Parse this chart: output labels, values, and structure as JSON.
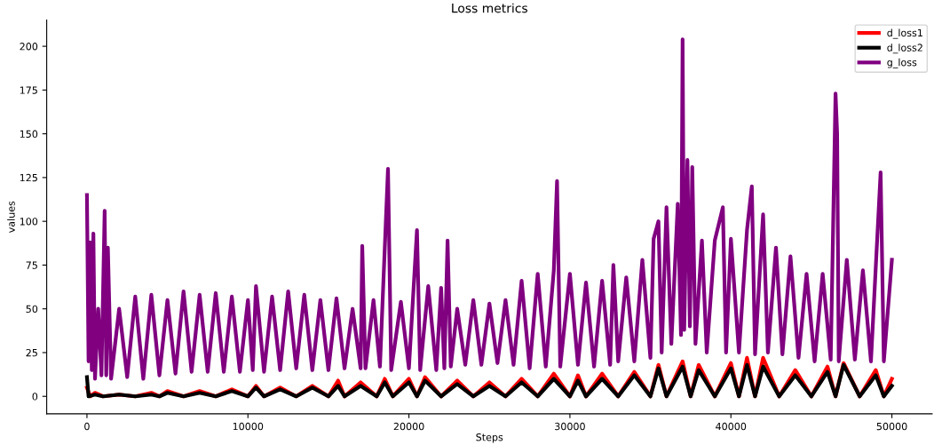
{
  "chart_data": {
    "type": "line",
    "title": "Loss metrics",
    "xlabel": "Steps",
    "ylabel": "values",
    "xlim": [
      -2500,
      52500
    ],
    "ylim": [
      -10,
      215
    ],
    "xticks": [
      0,
      10000,
      20000,
      30000,
      40000,
      50000
    ],
    "yticks": [
      0,
      25,
      50,
      75,
      100,
      125,
      150,
      175,
      200
    ],
    "grid": false,
    "legend": "top right",
    "line_style": "solid",
    "marker": "none",
    "series": [
      {
        "name": "d_loss1",
        "color": "#ff0000",
        "x": [
          0,
          200,
          500,
          1000,
          2000,
          3000,
          4000,
          4500,
          5000,
          6000,
          7000,
          8000,
          9000,
          10000,
          10500,
          11000,
          12000,
          13000,
          14000,
          15000,
          15600,
          16000,
          17000,
          18000,
          18500,
          19000,
          20000,
          20500,
          21000,
          22000,
          23000,
          24000,
          25000,
          26000,
          27000,
          28000,
          29000,
          30000,
          30500,
          31000,
          32000,
          33000,
          34000,
          35000,
          35500,
          36000,
          37000,
          37500,
          38000,
          39000,
          40000,
          40500,
          41000,
          41500,
          42000,
          43000,
          44000,
          45000,
          46000,
          46500,
          47000,
          48000,
          49000,
          49500,
          50000
        ],
        "values": [
          5,
          0,
          2,
          0,
          1,
          0,
          2,
          0,
          3,
          0,
          3,
          0,
          4,
          0,
          6,
          0,
          5,
          0,
          6,
          0,
          9,
          0,
          8,
          0,
          10,
          0,
          10,
          0,
          11,
          0,
          9,
          0,
          8,
          0,
          10,
          0,
          13,
          0,
          12,
          0,
          13,
          0,
          14,
          0,
          18,
          0,
          20,
          0,
          18,
          0,
          19,
          0,
          22,
          0,
          22,
          0,
          15,
          0,
          17,
          0,
          19,
          0,
          15,
          0,
          10
        ]
      },
      {
        "name": "d_loss2",
        "color": "#000000",
        "x": [
          0,
          100,
          500,
          1000,
          2000,
          3000,
          4000,
          4500,
          5000,
          6000,
          7000,
          8000,
          9000,
          10000,
          10500,
          11000,
          12000,
          13000,
          14000,
          15000,
          15600,
          16000,
          17000,
          18000,
          18500,
          19000,
          20000,
          20500,
          21000,
          22000,
          23000,
          24000,
          25000,
          26000,
          27000,
          28000,
          29000,
          30000,
          30500,
          31000,
          32000,
          33000,
          34000,
          35000,
          35500,
          36000,
          37000,
          37500,
          38000,
          39000,
          40000,
          40500,
          41000,
          41500,
          42000,
          43000,
          44000,
          45000,
          46000,
          46500,
          47000,
          48000,
          49000,
          49500,
          50000
        ],
        "values": [
          11,
          0,
          1,
          0,
          1,
          0,
          1,
          0,
          2,
          0,
          2,
          0,
          3,
          0,
          5,
          0,
          4,
          0,
          5,
          0,
          6,
          0,
          6,
          0,
          8,
          0,
          8,
          0,
          9,
          0,
          7,
          0,
          6,
          0,
          8,
          0,
          10,
          0,
          9,
          0,
          10,
          0,
          12,
          0,
          16,
          0,
          17,
          0,
          15,
          0,
          16,
          0,
          18,
          0,
          17,
          0,
          12,
          0,
          14,
          0,
          18,
          0,
          12,
          0,
          6
        ]
      },
      {
        "name": "g_loss",
        "color": "#800080",
        "x": [
          0,
          100,
          200,
          300,
          400,
          500,
          700,
          900,
          1100,
          1200,
          1300,
          1500,
          2000,
          2500,
          3000,
          3500,
          4000,
          4500,
          5000,
          5500,
          6000,
          6500,
          7000,
          7500,
          8000,
          8500,
          9000,
          9500,
          10000,
          10300,
          10500,
          11000,
          11500,
          12000,
          12500,
          13000,
          13500,
          14000,
          14500,
          15000,
          15500,
          16000,
          16500,
          17000,
          17100,
          17300,
          17800,
          18200,
          18700,
          18900,
          19500,
          20000,
          20500,
          20700,
          21200,
          21700,
          22000,
          22200,
          22400,
          22600,
          23000,
          23500,
          24000,
          24500,
          25000,
          25500,
          26000,
          26500,
          27000,
          27500,
          28000,
          28500,
          29000,
          29200,
          29400,
          30000,
          30500,
          31000,
          31500,
          32000,
          32500,
          32700,
          33000,
          33500,
          34000,
          34500,
          35000,
          35200,
          35500,
          35700,
          36000,
          36300,
          36700,
          36900,
          37000,
          37100,
          37300,
          37450,
          37600,
          37800,
          38200,
          38500,
          39000,
          39500,
          39700,
          40000,
          40500,
          41000,
          41300,
          41500,
          42000,
          42300,
          42800,
          43200,
          43700,
          44200,
          44700,
          45200,
          45700,
          46200,
          46500,
          46600,
          46700,
          47200,
          47700,
          48200,
          48700,
          49300,
          49500,
          50000
        ],
        "values": [
          115,
          20,
          88,
          15,
          93,
          10,
          50,
          12,
          106,
          12,
          85,
          10,
          50,
          11,
          57,
          10,
          58,
          12,
          55,
          13,
          60,
          14,
          58,
          14,
          59,
          14,
          57,
          14,
          55,
          15,
          63,
          14,
          57,
          15,
          60,
          16,
          58,
          15,
          55,
          15,
          56,
          16,
          50,
          16,
          86,
          16,
          55,
          17,
          130,
          15,
          54,
          16,
          95,
          15,
          63,
          15,
          62,
          16,
          89,
          17,
          50,
          18,
          55,
          18,
          53,
          19,
          55,
          18,
          66,
          16,
          70,
          17,
          72,
          123,
          17,
          70,
          18,
          65,
          17,
          66,
          18,
          75,
          20,
          68,
          20,
          78,
          22,
          90,
          100,
          25,
          108,
          30,
          110,
          35,
          204,
          38,
          135,
          40,
          131,
          30,
          89,
          25,
          89,
          108,
          25,
          90,
          25,
          95,
          120,
          24,
          104,
          25,
          85,
          24,
          80,
          22,
          70,
          20,
          70,
          21,
          173,
          150,
          20,
          78,
          21,
          72,
          20,
          128,
          20,
          78
        ]
      }
    ]
  }
}
